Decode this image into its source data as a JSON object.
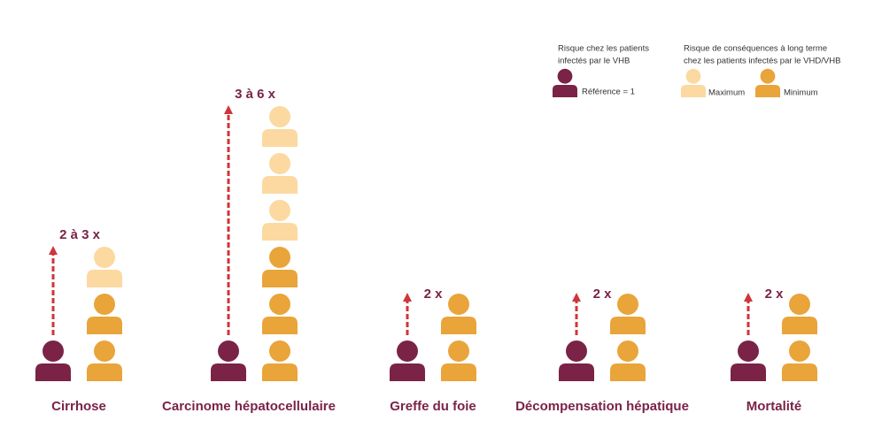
{
  "legend": {
    "reference_title": [
      "Risque chez les patients",
      "infectés par le VHB"
    ],
    "reference_label": "Référence = 1",
    "risk_title": [
      "Risque de conséquences à long terme",
      "chez les patients infectés par le VHD/VHB"
    ],
    "max_label": "Maximum",
    "min_label": "Minimum",
    "colors": {
      "reference": "#7a2347",
      "min": "#e9a43a",
      "max": "#fbd9a0",
      "arrow": "#d0343a"
    }
  },
  "groups": [
    {
      "label": "Cirrhose",
      "risk_label": "2 à 3 x",
      "min": 2,
      "max": 3
    },
    {
      "label": "Carcinome hépatocellulaire",
      "risk_label": "3 à 6 x",
      "min": 3,
      "max": 6
    },
    {
      "label": "Greffe du foie",
      "risk_label": "2 x",
      "min": 2,
      "max": 2
    },
    {
      "label": "Décompensation hépatique",
      "risk_label": "2 x",
      "min": 2,
      "max": 2
    },
    {
      "label": "Mortalité",
      "risk_label": "2 x",
      "min": 2,
      "max": 2
    }
  ]
}
